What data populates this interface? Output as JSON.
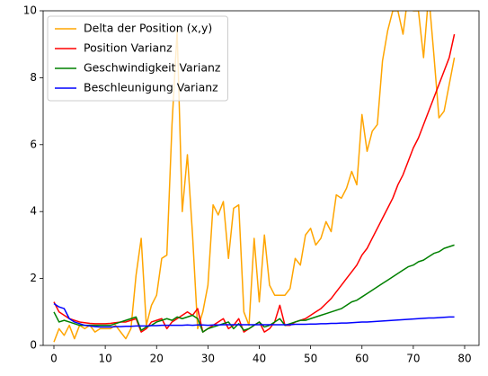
{
  "chart_data": {
    "type": "line",
    "x": [
      0,
      1,
      2,
      3,
      4,
      5,
      6,
      7,
      8,
      9,
      10,
      11,
      12,
      13,
      14,
      15,
      16,
      17,
      18,
      19,
      20,
      21,
      22,
      23,
      24,
      25,
      26,
      27,
      28,
      29,
      30,
      31,
      32,
      33,
      34,
      35,
      36,
      37,
      38,
      39,
      40,
      41,
      42,
      43,
      44,
      45,
      46,
      47,
      48,
      49,
      50,
      51,
      52,
      53,
      54,
      55,
      56,
      57,
      58,
      59,
      60,
      61,
      62,
      63,
      64,
      65,
      66,
      67,
      68,
      69,
      70,
      71,
      72,
      73,
      74,
      75,
      76,
      77,
      78
    ],
    "series": [
      {
        "name": "Delta der Position (x,y)",
        "color": "#ffa500",
        "values": [
          0.1,
          0.5,
          0.3,
          0.6,
          0.2,
          0.6,
          0.5,
          0.6,
          0.4,
          0.5,
          0.5,
          0.5,
          0.6,
          0.4,
          0.2,
          0.5,
          2.1,
          3.2,
          0.6,
          1.2,
          1.5,
          2.6,
          2.7,
          6.6,
          9.4,
          4.0,
          5.7,
          3.3,
          0.5,
          1.0,
          1.8,
          4.2,
          3.9,
          4.3,
          2.6,
          4.1,
          4.2,
          1.0,
          0.6,
          3.2,
          1.3,
          3.3,
          1.8,
          1.5,
          1.5,
          1.5,
          1.7,
          2.6,
          2.4,
          3.3,
          3.5,
          3.0,
          3.2,
          3.7,
          3.4,
          4.5,
          4.4,
          4.7,
          5.2,
          4.8,
          6.9,
          5.8,
          6.4,
          6.6,
          8.5,
          9.4,
          10.0,
          10.0,
          9.3,
          10.5,
          10.0,
          10.0,
          8.6,
          10.5,
          8.7,
          6.8,
          7.0,
          7.8,
          8.6
        ]
      },
      {
        "name": "Position Varianz",
        "color": "#ff0000",
        "values": [
          1.3,
          1.0,
          0.9,
          0.8,
          0.75,
          0.7,
          0.68,
          0.66,
          0.65,
          0.65,
          0.65,
          0.66,
          0.68,
          0.7,
          0.7,
          0.75,
          0.8,
          0.4,
          0.5,
          0.7,
          0.75,
          0.8,
          0.5,
          0.7,
          0.8,
          0.9,
          1.0,
          0.9,
          1.1,
          0.4,
          0.5,
          0.6,
          0.7,
          0.8,
          0.5,
          0.6,
          0.8,
          0.4,
          0.5,
          0.6,
          0.7,
          0.4,
          0.5,
          0.7,
          1.2,
          0.6,
          0.6,
          0.7,
          0.75,
          0.8,
          0.9,
          1.0,
          1.1,
          1.25,
          1.4,
          1.6,
          1.8,
          2.0,
          2.2,
          2.4,
          2.7,
          2.9,
          3.2,
          3.5,
          3.8,
          4.1,
          4.4,
          4.8,
          5.1,
          5.5,
          5.9,
          6.2,
          6.6,
          7.0,
          7.4,
          7.8,
          8.2,
          8.6,
          9.3
        ]
      },
      {
        "name": "Geschwindigkeit Varianz",
        "color": "#008000",
        "values": [
          1.0,
          0.7,
          0.75,
          0.7,
          0.65,
          0.6,
          0.6,
          0.6,
          0.6,
          0.6,
          0.6,
          0.6,
          0.65,
          0.7,
          0.75,
          0.8,
          0.85,
          0.45,
          0.55,
          0.6,
          0.7,
          0.75,
          0.8,
          0.75,
          0.85,
          0.8,
          0.85,
          0.9,
          0.8,
          0.4,
          0.5,
          0.55,
          0.6,
          0.65,
          0.7,
          0.5,
          0.65,
          0.45,
          0.5,
          0.6,
          0.7,
          0.55,
          0.6,
          0.7,
          0.8,
          0.6,
          0.65,
          0.7,
          0.75,
          0.75,
          0.8,
          0.85,
          0.9,
          0.95,
          1.0,
          1.05,
          1.1,
          1.2,
          1.3,
          1.35,
          1.45,
          1.55,
          1.65,
          1.75,
          1.85,
          1.95,
          2.05,
          2.15,
          2.25,
          2.35,
          2.4,
          2.5,
          2.55,
          2.65,
          2.75,
          2.8,
          2.9,
          2.95,
          3.0
        ]
      },
      {
        "name": "Beschleunigung Varianz",
        "color": "#0000ff",
        "values": [
          1.25,
          1.15,
          1.1,
          0.8,
          0.7,
          0.65,
          0.6,
          0.58,
          0.56,
          0.55,
          0.55,
          0.55,
          0.56,
          0.56,
          0.57,
          0.57,
          0.58,
          0.58,
          0.58,
          0.59,
          0.59,
          0.6,
          0.6,
          0.6,
          0.6,
          0.6,
          0.61,
          0.6,
          0.61,
          0.61,
          0.6,
          0.61,
          0.61,
          0.62,
          0.62,
          0.62,
          0.62,
          0.62,
          0.62,
          0.62,
          0.62,
          0.62,
          0.62,
          0.62,
          0.62,
          0.62,
          0.62,
          0.63,
          0.63,
          0.63,
          0.64,
          0.64,
          0.65,
          0.65,
          0.66,
          0.66,
          0.67,
          0.67,
          0.68,
          0.69,
          0.7,
          0.7,
          0.71,
          0.72,
          0.73,
          0.74,
          0.75,
          0.76,
          0.77,
          0.78,
          0.79,
          0.8,
          0.81,
          0.82,
          0.82,
          0.83,
          0.84,
          0.85,
          0.85
        ]
      }
    ],
    "xlim": [
      -2.1,
      82.8
    ],
    "ylim": [
      0,
      10
    ],
    "xticks": [
      0,
      10,
      20,
      30,
      40,
      50,
      60,
      70,
      80
    ],
    "yticks": [
      0,
      2,
      4,
      6,
      8,
      10
    ],
    "legend": "upper left"
  }
}
